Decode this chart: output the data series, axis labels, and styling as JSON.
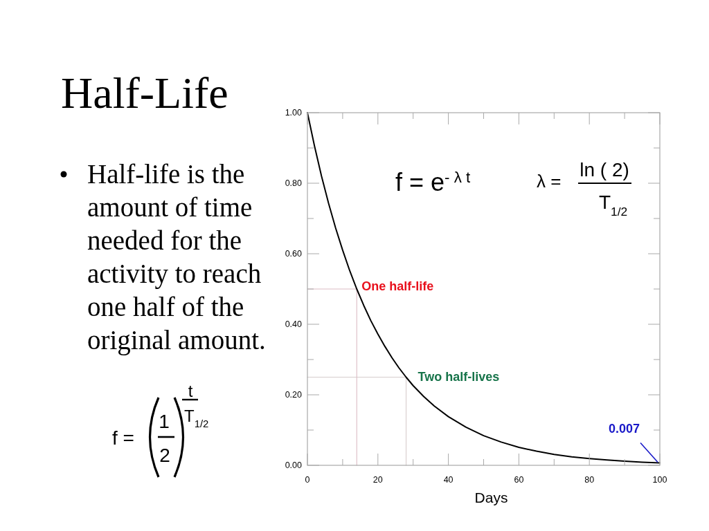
{
  "chart_data": {
    "type": "line",
    "title": "Half-Life",
    "xlabel": "Days",
    "xlim": [
      0,
      100
    ],
    "ylim": [
      0,
      1
    ],
    "xticks": [
      0,
      {
        "value": 10,
        "label": null
      },
      20,
      {
        "value": 30,
        "label": null
      },
      40,
      {
        "value": 50,
        "label": null
      },
      60,
      {
        "value": 70,
        "label": null
      },
      80,
      {
        "value": 90,
        "label": null
      },
      100
    ],
    "yticks": [
      {
        "value": 0,
        "label": "0.00"
      },
      {
        "value": 0.1,
        "label": null
      },
      {
        "value": 0.2,
        "label": "0.20"
      },
      {
        "value": 0.3,
        "label": null
      },
      {
        "value": 0.4,
        "label": "0.40"
      },
      {
        "value": 0.5,
        "label": null
      },
      {
        "value": 0.6,
        "label": "0.60"
      },
      {
        "value": 0.7,
        "label": null
      },
      {
        "value": 0.8,
        "label": "0.80"
      },
      {
        "value": 0.9,
        "label": null
      },
      {
        "value": 1,
        "label": "1.00"
      }
    ],
    "series": [
      {
        "color": "#000000",
        "x": [
          0,
          2,
          4,
          6,
          8,
          10,
          12,
          14,
          16,
          18,
          20,
          22,
          24,
          26,
          28,
          30,
          33,
          36,
          40,
          45,
          50,
          55,
          60,
          65,
          70,
          75,
          80,
          85,
          90,
          95,
          100
        ],
        "values": [
          1.0,
          0.906,
          0.82,
          0.743,
          0.673,
          0.61,
          0.552,
          0.5,
          0.453,
          0.41,
          0.372,
          0.337,
          0.305,
          0.276,
          0.25,
          0.226,
          0.195,
          0.168,
          0.138,
          0.108,
          0.084,
          0.066,
          0.051,
          0.04,
          0.031,
          0.024,
          0.019,
          0.015,
          0.012,
          0.009,
          0.007
        ]
      },
      {
        "type": "line",
        "color": "#dcbcc4",
        "x": [
          0,
          14,
          14
        ],
        "values": [
          0.5,
          0.5,
          0
        ]
      },
      {
        "type": "line",
        "color": "#d6cccc",
        "x": [
          0,
          28,
          28
        ],
        "values": [
          0.25,
          0.25,
          0
        ]
      }
    ],
    "annotations": [
      {
        "text": "One half-life",
        "x": 14,
        "y": 0.5
      },
      {
        "text": "Two half-lives",
        "x": 28,
        "y": 0.25
      },
      {
        "text": "0.007",
        "x": 100,
        "y": 0.007
      },
      "Half-life is the amount of time needed for the activity to reach one half of the original amount.",
      "f = e$^{- λ t}$",
      "λ =",
      "ln ( 2)",
      "T$_{1/2}$",
      "f =",
      "1",
      "2",
      "t",
      "T$_{1/2}$"
    ]
  }
}
